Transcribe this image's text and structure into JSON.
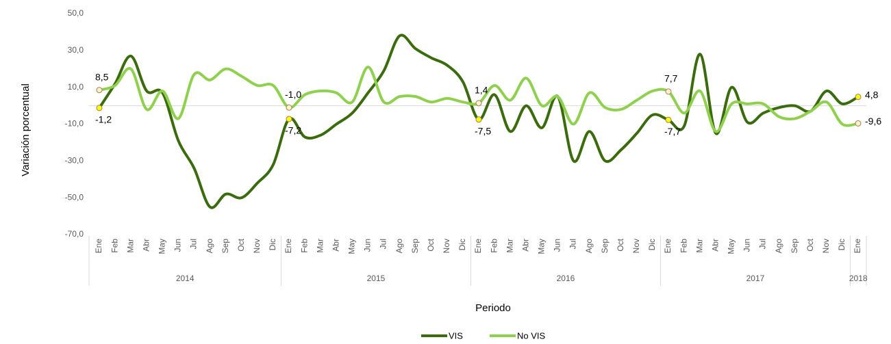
{
  "chart_data": {
    "type": "line",
    "y_label": "Variación porcentual",
    "x_label": "Periodo",
    "categories": [
      "Ene",
      "Feb",
      "Mar",
      "Abr",
      "May",
      "Jun",
      "Jul",
      "Ago",
      "Sep",
      "Oct",
      "Nov",
      "Dic",
      "Ene",
      "Feb",
      "Mar",
      "Abr",
      "May",
      "Jun",
      "Jul",
      "Ago",
      "Sep",
      "Oct",
      "Nov",
      "Dic",
      "Ene",
      "Feb",
      "Mar",
      "Abr",
      "May",
      "Jun",
      "Jul",
      "Ago",
      "Sep",
      "Oct",
      "Nov",
      "Dic",
      "Ene",
      "Feb",
      "Mar",
      "Abr",
      "May",
      "Jun",
      "Jul",
      "Ago",
      "Sep",
      "Oct",
      "Nov",
      "Dic",
      "Ene"
    ],
    "years": [
      "2014",
      "2015",
      "2016",
      "2017",
      "2018"
    ],
    "series": [
      {
        "name": "VIS",
        "color": "#3a6b0c",
        "marker_color": "#ffff00",
        "values": [
          -1.2,
          12,
          27,
          8,
          7,
          -19,
          -34,
          -55,
          -48,
          -50,
          -42,
          -32,
          -7.2,
          -17,
          -16,
          -10,
          -4,
          7,
          19,
          38,
          31,
          26,
          22,
          13,
          -7.5,
          6,
          -14,
          0,
          -12,
          5,
          -30,
          -14,
          -30,
          -24,
          -15,
          -5,
          -7.7,
          -11,
          28,
          -15,
          10,
          -9,
          -4,
          -1,
          0,
          -3,
          8,
          1,
          4.8
        ],
        "value_labels": [
          "-1,2",
          null,
          null,
          null,
          null,
          null,
          null,
          null,
          null,
          null,
          null,
          null,
          "-7,2",
          null,
          null,
          null,
          null,
          null,
          null,
          null,
          null,
          null,
          null,
          null,
          "-7,5",
          null,
          null,
          null,
          null,
          null,
          null,
          null,
          null,
          null,
          null,
          null,
          "-7,7",
          null,
          null,
          null,
          null,
          null,
          null,
          null,
          null,
          null,
          null,
          null,
          "4,8"
        ]
      },
      {
        "name": "No VIS",
        "color": "#8fd14f",
        "marker_color": "#fff2cc",
        "values": [
          8.5,
          11,
          20,
          -2,
          8,
          -7,
          17,
          14,
          20,
          16,
          11,
          11,
          -1.0,
          6,
          8,
          7,
          2,
          21,
          2,
          5,
          5,
          2,
          4,
          2,
          1.4,
          11,
          3,
          15,
          0,
          5,
          -10,
          7,
          -1,
          -2,
          3,
          8,
          7.7,
          -4,
          8,
          -14,
          1,
          1,
          1,
          -6,
          -7,
          -3,
          2,
          -10,
          -9.6
        ],
        "value_labels": [
          "8,5",
          null,
          null,
          null,
          null,
          null,
          null,
          null,
          null,
          null,
          null,
          null,
          "-1,0",
          null,
          null,
          null,
          null,
          null,
          null,
          null,
          null,
          null,
          null,
          null,
          "1,4",
          null,
          null,
          null,
          null,
          null,
          null,
          null,
          null,
          null,
          null,
          null,
          "7,7",
          null,
          null,
          null,
          null,
          null,
          null,
          null,
          null,
          null,
          null,
          null,
          "-9,6"
        ]
      }
    ],
    "ylim": [
      -70,
      50
    ],
    "yticks": [
      {
        "value": -70,
        "label": "-70,0"
      },
      {
        "value": -50,
        "label": "-50,0"
      },
      {
        "value": -30,
        "label": "-30,0"
      },
      {
        "value": -10,
        "label": "-10,0"
      },
      {
        "value": 10,
        "label": "10,0"
      },
      {
        "value": 30,
        "label": "30,0"
      },
      {
        "value": 50,
        "label": "50,0"
      }
    ],
    "legend": "bottom"
  }
}
